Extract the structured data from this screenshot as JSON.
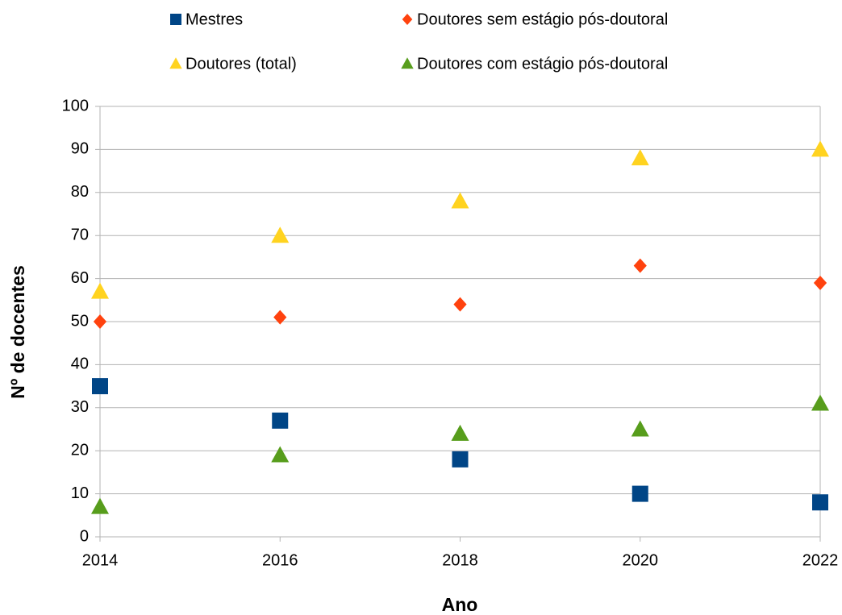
{
  "chart_data": {
    "type": "scatter",
    "x_label": "Ano",
    "y_label": "Nº de docentes",
    "x": [
      2014,
      2016,
      2018,
      2020,
      2022
    ],
    "series": [
      {
        "name": "Mestres",
        "color": "#004586",
        "marker": "square",
        "values": [
          35,
          27,
          18,
          10,
          8
        ]
      },
      {
        "name": "Doutores sem estágio pós-doutoral",
        "color": "#ff420e",
        "marker": "diamond",
        "values": [
          50,
          51,
          54,
          63,
          59
        ]
      },
      {
        "name": "Doutores (total)",
        "color": "#ffd320",
        "marker": "triangle",
        "values": [
          57,
          70,
          78,
          88,
          90
        ]
      },
      {
        "name": "Doutores com estágio pós-doutoral",
        "color": "#579d1c",
        "marker": "triangle",
        "values": [
          7,
          19,
          24,
          25,
          31
        ]
      }
    ],
    "xlim": [
      2014,
      2022
    ],
    "xticks": [
      2014,
      2016,
      2018,
      2020,
      2022
    ],
    "ylim": [
      0,
      100
    ],
    "yticks": [
      0,
      10,
      20,
      30,
      40,
      50,
      60,
      70,
      80,
      90,
      100
    ],
    "grid": true,
    "legend": "top"
  }
}
